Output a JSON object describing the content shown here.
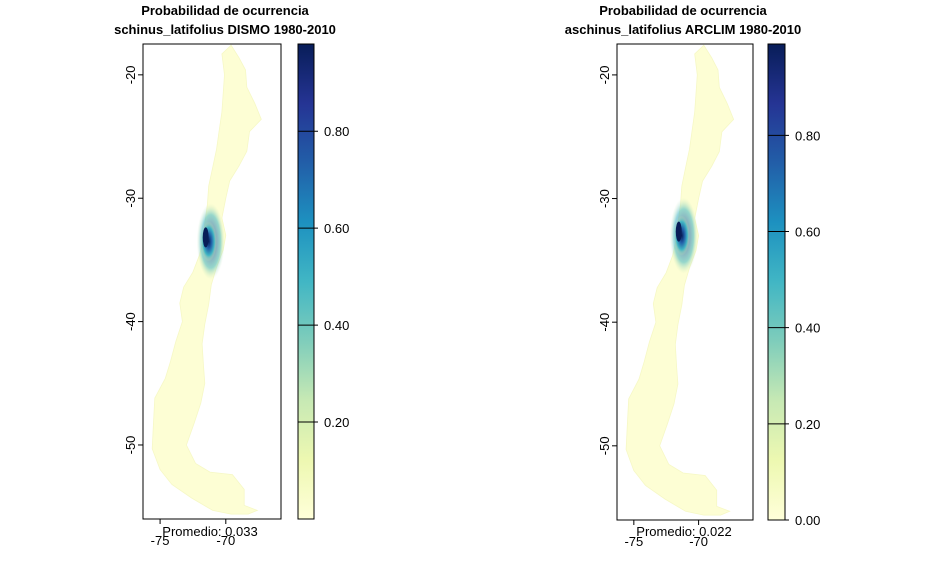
{
  "chart_data": [
    {
      "type": "heatmap",
      "title": "Probabilidad de ocurrencia",
      "subtitle": "schinus_latifolius DISMO 1980-2010",
      "annotation": "Promedio: 0.033",
      "xlabel": "",
      "ylabel": "",
      "x_ticks": [
        "-75",
        "-70"
      ],
      "x_tick_values": [
        -75,
        -70
      ],
      "y_ticks": [
        "-20",
        "-30",
        "-40",
        "-50"
      ],
      "y_tick_values": [
        -20,
        -30,
        -40,
        -50
      ],
      "xlim": [
        -76.3,
        -65.8
      ],
      "ylim": [
        -56.0,
        -17.5
      ],
      "colorbar": {
        "ticks": [
          "0.20",
          "0.40",
          "0.60",
          "0.80"
        ],
        "tick_values": [
          0.2,
          0.4,
          0.6,
          0.8
        ],
        "range": [
          0.0,
          0.98
        ],
        "palette": "YlGnBu"
      },
      "hotspot": {
        "lon": -71.3,
        "lat": -33.5,
        "peak": 0.95
      }
    },
    {
      "type": "heatmap",
      "title": "Probabilidad de ocurrencia",
      "subtitle": "aschinus_latifolius ARCLIM 1980-2010",
      "annotation": "Promedio: 0.022",
      "xlabel": "",
      "ylabel": "",
      "x_ticks": [
        "-75",
        "-70"
      ],
      "x_tick_values": [
        -75,
        -70
      ],
      "y_ticks": [
        "-20",
        "-30",
        "-40",
        "-50"
      ],
      "y_tick_values": [
        -20,
        -30,
        -40,
        -50
      ],
      "xlim": [
        -76.3,
        -65.8
      ],
      "ylim": [
        -56.0,
        -17.5
      ],
      "colorbar": {
        "ticks": [
          "0.00",
          "0.20",
          "0.40",
          "0.60",
          "0.80"
        ],
        "tick_values": [
          0.0,
          0.2,
          0.4,
          0.6,
          0.8
        ],
        "range": [
          0.0,
          0.99
        ],
        "palette": "YlGnBu"
      },
      "hotspot": {
        "lon": -71.3,
        "lat": -33.0,
        "peak": 0.97
      }
    }
  ],
  "colors": {
    "palette_stops": [
      "#ffffd9",
      "#edf8b1",
      "#c7e9b4",
      "#7fcdbb",
      "#41b6c4",
      "#1d91c0",
      "#225ea8",
      "#253494",
      "#081d58"
    ],
    "land": "#fdfed4"
  }
}
